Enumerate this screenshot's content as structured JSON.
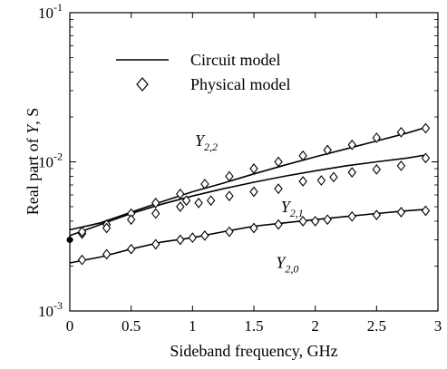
{
  "chart_data": {
    "type": "line",
    "xlabel": "Sideband frequency, GHz",
    "ylabel": "Real part of Y, S",
    "ylabel_parts": {
      "prefix": "Real part of ",
      "var": "Y",
      "suffix": ", S"
    },
    "xlim": [
      0,
      3
    ],
    "ylim": [
      0.001,
      0.1
    ],
    "yscale": "log",
    "grid": false,
    "legend_position": "top-left",
    "x_ticks": [
      {
        "value": 0,
        "label": "0"
      },
      {
        "value": 0.5,
        "label": "0.5"
      },
      {
        "value": 1,
        "label": "1"
      },
      {
        "value": 1.5,
        "label": "1.5"
      },
      {
        "value": 2,
        "label": "2"
      },
      {
        "value": 2.5,
        "label": "2.5"
      },
      {
        "value": 3,
        "label": "3"
      }
    ],
    "y_ticks": [
      {
        "value": 0.001,
        "base": "10",
        "exp": "-3"
      },
      {
        "value": 0.01,
        "base": "10",
        "exp": "-2"
      },
      {
        "value": 0.1,
        "base": "10",
        "exp": "-1"
      }
    ],
    "legend": [
      {
        "label": "Circuit model",
        "marker": "line"
      },
      {
        "label": "Physical model",
        "marker": "diamond"
      }
    ],
    "curve_labels": [
      {
        "series": "Y22",
        "main": "Y",
        "sub": "2,2",
        "x": 1.02,
        "y": 0.0128
      },
      {
        "series": "Y21",
        "main": "Y",
        "sub": "2,1",
        "x": 1.72,
        "y": 0.0046
      },
      {
        "series": "Y20",
        "main": "Y",
        "sub": "2,0",
        "x": 1.68,
        "y": 0.00195
      }
    ],
    "marker_at_origin": {
      "x": 0,
      "y": 0.003
    },
    "series": [
      {
        "key": "Y22",
        "circuit_model": {
          "x": [
            0,
            0.25,
            0.5,
            0.75,
            1.0,
            1.25,
            1.5,
            1.75,
            2.0,
            2.25,
            2.5,
            2.75,
            2.9
          ],
          "y": [
            0.0035,
            0.0039,
            0.0046,
            0.0054,
            0.0063,
            0.0072,
            0.0083,
            0.0095,
            0.0108,
            0.0122,
            0.0138,
            0.0156,
            0.017
          ]
        },
        "physical_model": {
          "x": [
            0.1,
            0.3,
            0.5,
            0.7,
            0.9,
            1.1,
            1.3,
            1.5,
            1.7,
            1.9,
            2.1,
            2.3,
            2.5,
            2.7,
            2.9
          ],
          "y": [
            0.0033,
            0.0038,
            0.0045,
            0.0053,
            0.0061,
            0.0071,
            0.008,
            0.009,
            0.01,
            0.011,
            0.012,
            0.013,
            0.0145,
            0.0158,
            0.0168
          ]
        }
      },
      {
        "key": "Y21",
        "circuit_model": {
          "x": [
            0,
            0.25,
            0.5,
            0.75,
            1.0,
            1.25,
            1.5,
            1.75,
            2.0,
            2.25,
            2.5,
            2.75,
            2.9
          ],
          "y": [
            0.0032,
            0.0038,
            0.0045,
            0.0052,
            0.0059,
            0.0066,
            0.0073,
            0.008,
            0.0087,
            0.0094,
            0.01,
            0.0106,
            0.0111
          ]
        },
        "physical_model": {
          "x": [
            0.1,
            0.3,
            0.5,
            0.7,
            0.9,
            0.95,
            1.05,
            1.15,
            1.3,
            1.5,
            1.7,
            1.9,
            2.05,
            2.15,
            2.3,
            2.5,
            2.7,
            2.9
          ],
          "y": [
            0.0034,
            0.0036,
            0.0041,
            0.0045,
            0.005,
            0.0055,
            0.0053,
            0.0055,
            0.0059,
            0.0063,
            0.0066,
            0.0074,
            0.0075,
            0.0079,
            0.0085,
            0.0089,
            0.0094,
            0.0106
          ]
        }
      },
      {
        "key": "Y20",
        "circuit_model": {
          "x": [
            0,
            0.25,
            0.5,
            0.75,
            1.0,
            1.25,
            1.5,
            1.75,
            2.0,
            2.25,
            2.5,
            2.75,
            2.9
          ],
          "y": [
            0.0021,
            0.0023,
            0.0026,
            0.0029,
            0.0031,
            0.0034,
            0.0037,
            0.0039,
            0.0041,
            0.0043,
            0.0045,
            0.0047,
            0.0048
          ]
        },
        "physical_model": {
          "x": [
            0.1,
            0.3,
            0.5,
            0.7,
            0.9,
            1.0,
            1.1,
            1.3,
            1.5,
            1.7,
            1.9,
            2.0,
            2.1,
            2.3,
            2.5,
            2.7,
            2.9
          ],
          "y": [
            0.0022,
            0.0024,
            0.0026,
            0.0028,
            0.003,
            0.0031,
            0.0032,
            0.0034,
            0.0036,
            0.0038,
            0.004,
            0.004,
            0.0041,
            0.0043,
            0.0044,
            0.0046,
            0.0047
          ]
        }
      }
    ]
  }
}
